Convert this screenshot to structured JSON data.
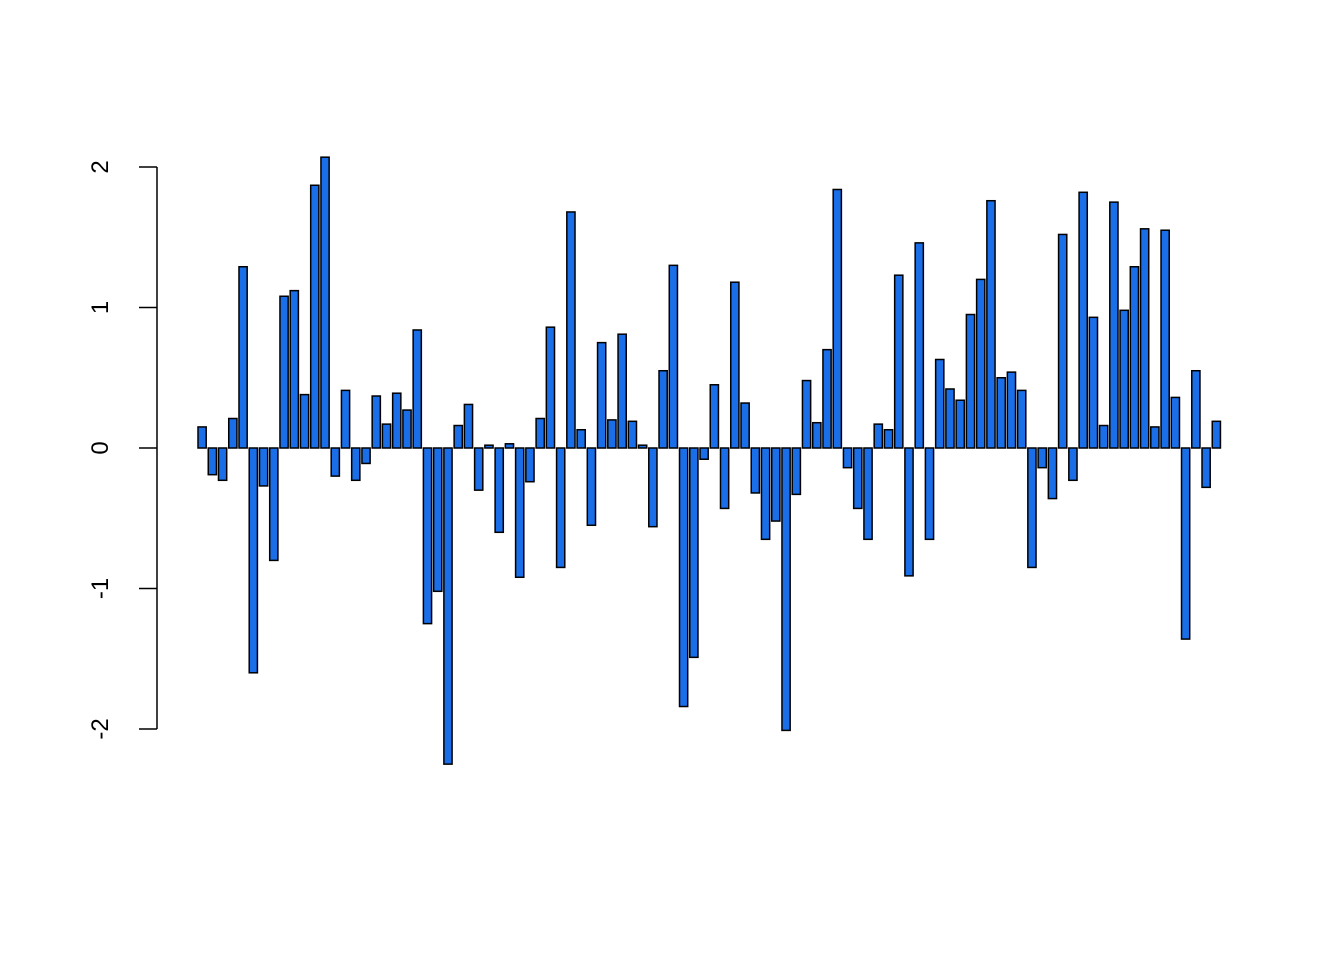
{
  "chart_data": {
    "type": "bar",
    "title": "",
    "xlabel": "",
    "ylabel": "",
    "ylim": [
      -2.25,
      2.08
    ],
    "yticks": [
      -2,
      -1,
      0,
      1,
      2
    ],
    "ytick_labels": [
      "-2",
      "-1",
      "0",
      "1",
      "2"
    ],
    "grid": false,
    "legend": "none",
    "colors": {
      "bar_fill": "#1a6ee8",
      "bar_stroke": "#000000",
      "axis": "#000000"
    },
    "values": [
      0.15,
      -0.19,
      -0.23,
      0.21,
      1.29,
      -1.6,
      -0.27,
      -0.8,
      1.08,
      1.12,
      0.38,
      1.87,
      2.07,
      -0.2,
      0.41,
      -0.23,
      -0.11,
      0.37,
      0.17,
      0.39,
      0.27,
      0.84,
      -1.25,
      -1.02,
      -2.25,
      0.16,
      0.31,
      -0.3,
      0.02,
      -0.6,
      0.03,
      -0.92,
      -0.24,
      0.21,
      0.86,
      -0.85,
      1.68,
      0.13,
      -0.55,
      0.75,
      0.2,
      0.81,
      0.19,
      0.02,
      -0.56,
      0.55,
      1.3,
      -1.84,
      -1.49,
      -0.08,
      0.45,
      -0.43,
      1.18,
      0.32,
      -0.32,
      -0.65,
      -0.52,
      -2.01,
      -0.33,
      0.48,
      0.18,
      0.7,
      1.84,
      -0.14,
      -0.43,
      -0.65,
      0.17,
      0.13,
      1.23,
      -0.91,
      1.46,
      -0.65,
      0.63,
      0.42,
      0.34,
      0.95,
      1.2,
      1.76,
      0.5,
      0.54,
      0.41,
      -0.85,
      -0.14,
      -0.36,
      1.52,
      -0.23,
      1.82,
      0.93,
      0.16,
      1.75,
      0.98,
      1.29,
      1.56,
      0.15,
      1.55,
      0.36,
      -1.36,
      0.55,
      -0.28,
      0.19
    ]
  }
}
